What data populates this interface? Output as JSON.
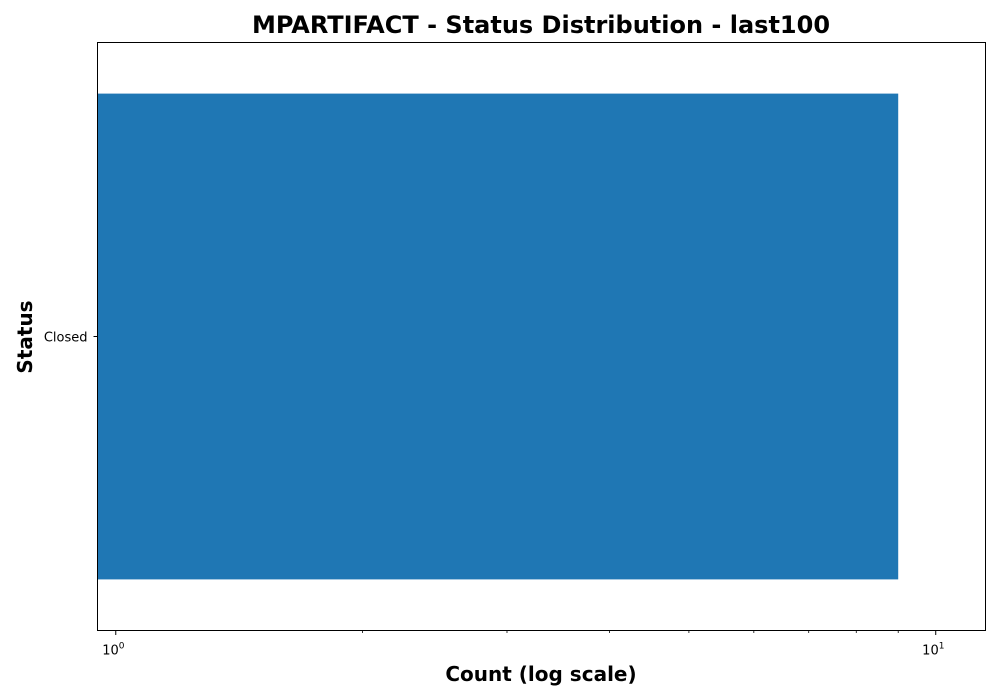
{
  "chart_data": {
    "type": "bar",
    "orientation": "horizontal",
    "title": "MPARTIFACT - Status Distribution - last100",
    "xlabel": "Count (log scale)",
    "ylabel": "Status",
    "xscale": "log",
    "xlim": [
      0.95,
      11.5
    ],
    "categories": [
      "Closed"
    ],
    "values": [
      9
    ],
    "xticks_major": [
      {
        "value": 1,
        "base": "10",
        "exp": "0"
      },
      {
        "value": 10,
        "base": "10",
        "exp": "1"
      }
    ],
    "xticks_minor": [
      2,
      3,
      4,
      5,
      6,
      7,
      8,
      9
    ],
    "grid": false,
    "bar_color": "#1f77b4"
  }
}
